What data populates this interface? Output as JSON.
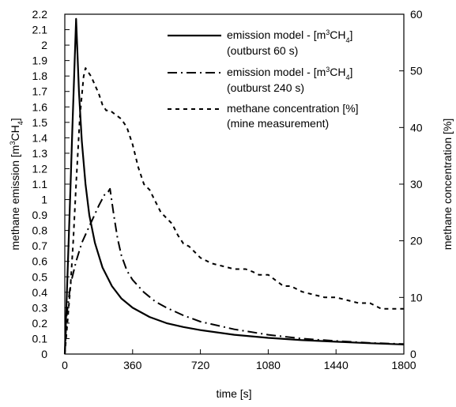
{
  "chart_data": {
    "type": "line",
    "xlabel": "time [s]",
    "xlim": [
      0,
      1800
    ],
    "xticks": [
      "0",
      "360",
      "720",
      "1080",
      "1440",
      "1800"
    ],
    "y_left": {
      "label_parts": [
        "methane emission [m",
        "3",
        "CH",
        "4",
        "]"
      ],
      "lim": [
        0,
        2.2
      ],
      "ticks": [
        "0",
        "0.1",
        "0.2",
        "0.3",
        "0.4",
        "0.5",
        "0.6",
        "0.7",
        "0.8",
        "0.9",
        "1",
        "1.1",
        "1.2",
        "1.3",
        "1.4",
        "1.5",
        "1.6",
        "1.7",
        "1.8",
        "1.9",
        "2",
        "2.1",
        "2.2"
      ]
    },
    "y_right": {
      "label": "methane concentration [%]",
      "lim": [
        0,
        60
      ],
      "ticks": [
        "0",
        "10",
        "20",
        "30",
        "40",
        "50",
        "60"
      ]
    },
    "legend_position": "top-right",
    "series": [
      {
        "legend_line1_parts": [
          "emission model - [m",
          "3",
          "CH",
          "4",
          "]"
        ],
        "legend_line2": "(outburst 60 s)",
        "axis": "left",
        "style": "solid",
        "x": [
          0,
          10,
          20,
          30,
          40,
          50,
          60,
          75,
          90,
          110,
          130,
          160,
          200,
          250,
          300,
          360,
          450,
          540,
          630,
          720,
          900,
          1080,
          1260,
          1440,
          1620,
          1800
        ],
        "y": [
          0,
          0.36,
          0.72,
          1.08,
          1.45,
          1.81,
          2.17,
          1.7,
          1.38,
          1.1,
          0.9,
          0.72,
          0.56,
          0.44,
          0.36,
          0.3,
          0.24,
          0.2,
          0.175,
          0.155,
          0.125,
          0.105,
          0.09,
          0.08,
          0.07,
          0.062
        ]
      },
      {
        "legend_line1_parts": [
          "emission model - [m",
          "3",
          "CH",
          "4",
          "]"
        ],
        "legend_line2": "(outburst 240 s)",
        "axis": "left",
        "style": "dashdot",
        "x": [
          0,
          10,
          30,
          60,
          90,
          120,
          150,
          180,
          210,
          230,
          240,
          260,
          280,
          300,
          330,
          360,
          420,
          480,
          540,
          630,
          720,
          900,
          1080,
          1260,
          1440,
          1620,
          1800
        ],
        "y": [
          0,
          0.25,
          0.45,
          0.6,
          0.72,
          0.8,
          0.88,
          0.96,
          1.03,
          1.05,
          1.07,
          0.9,
          0.75,
          0.64,
          0.54,
          0.48,
          0.4,
          0.34,
          0.3,
          0.25,
          0.21,
          0.16,
          0.125,
          0.1,
          0.085,
          0.072,
          0.065
        ]
      },
      {
        "legend_line1": "methane concentration [%]",
        "legend_line2": "(mine measurement)",
        "axis": "right",
        "style": "dashed",
        "x": [
          0,
          10,
          20,
          30,
          45,
          60,
          80,
          100,
          110,
          120,
          140,
          160,
          180,
          200,
          220,
          240,
          260,
          300,
          330,
          360,
          390,
          420,
          450,
          480,
          510,
          540,
          570,
          600,
          630,
          660,
          690,
          720,
          780,
          840,
          900,
          960,
          1000,
          1030,
          1080,
          1120,
          1160,
          1200,
          1260,
          1320,
          1380,
          1440,
          1500,
          1560,
          1620,
          1680,
          1740,
          1800
        ],
        "y": [
          0,
          4,
          8,
          12,
          20,
          30,
          42,
          49,
          50.5,
          50,
          49,
          47.5,
          46,
          44,
          43,
          43,
          42.5,
          41.5,
          40,
          37,
          33,
          30,
          29,
          27,
          25,
          24,
          23,
          21,
          19.5,
          19,
          18,
          17,
          16,
          15.5,
          15,
          15,
          14.5,
          14,
          14,
          13,
          12,
          12,
          11,
          10.5,
          10,
          10,
          9.5,
          9,
          9,
          8,
          8,
          8
        ]
      }
    ]
  }
}
